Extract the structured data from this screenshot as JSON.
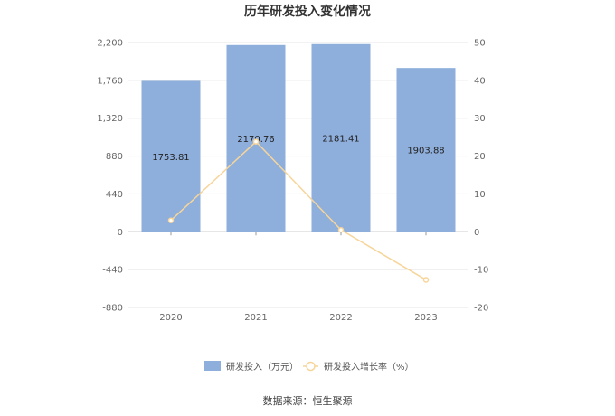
{
  "chart_data": {
    "type": "bar",
    "title": "历年研发投入变化情况",
    "categories": [
      "2020",
      "2021",
      "2022",
      "2023"
    ],
    "series": [
      {
        "name": "研发投入（万元）",
        "type": "bar",
        "axis": "left",
        "values": [
          1753.81,
          2170.76,
          2181.41,
          1903.88
        ],
        "labels": [
          "1753.81",
          "2170.76",
          "2181.41",
          "1903.88"
        ],
        "color": "#8eaedb"
      },
      {
        "name": "研发投入增长率（%）",
        "type": "line",
        "axis": "right",
        "values": [
          3.0,
          23.8,
          0.5,
          -12.7
        ],
        "color": "#f7d59a"
      }
    ],
    "y_left": {
      "min": -880,
      "max": 2200,
      "ticks": [
        "2,200",
        "1,760",
        "1,320",
        "880",
        "440",
        "0",
        "-440",
        "-880"
      ],
      "tick_values": [
        2200,
        1760,
        1320,
        880,
        440,
        0,
        -440,
        -880
      ]
    },
    "y_right": {
      "min": -20,
      "max": 50,
      "ticks": [
        "50",
        "40",
        "30",
        "20",
        "10",
        "0",
        "-10",
        "-20"
      ],
      "tick_values": [
        50,
        40,
        30,
        20,
        10,
        0,
        -10,
        -20
      ]
    },
    "grid": true,
    "legend_position": "bottom"
  },
  "source": "数据来源：恒生聚源"
}
